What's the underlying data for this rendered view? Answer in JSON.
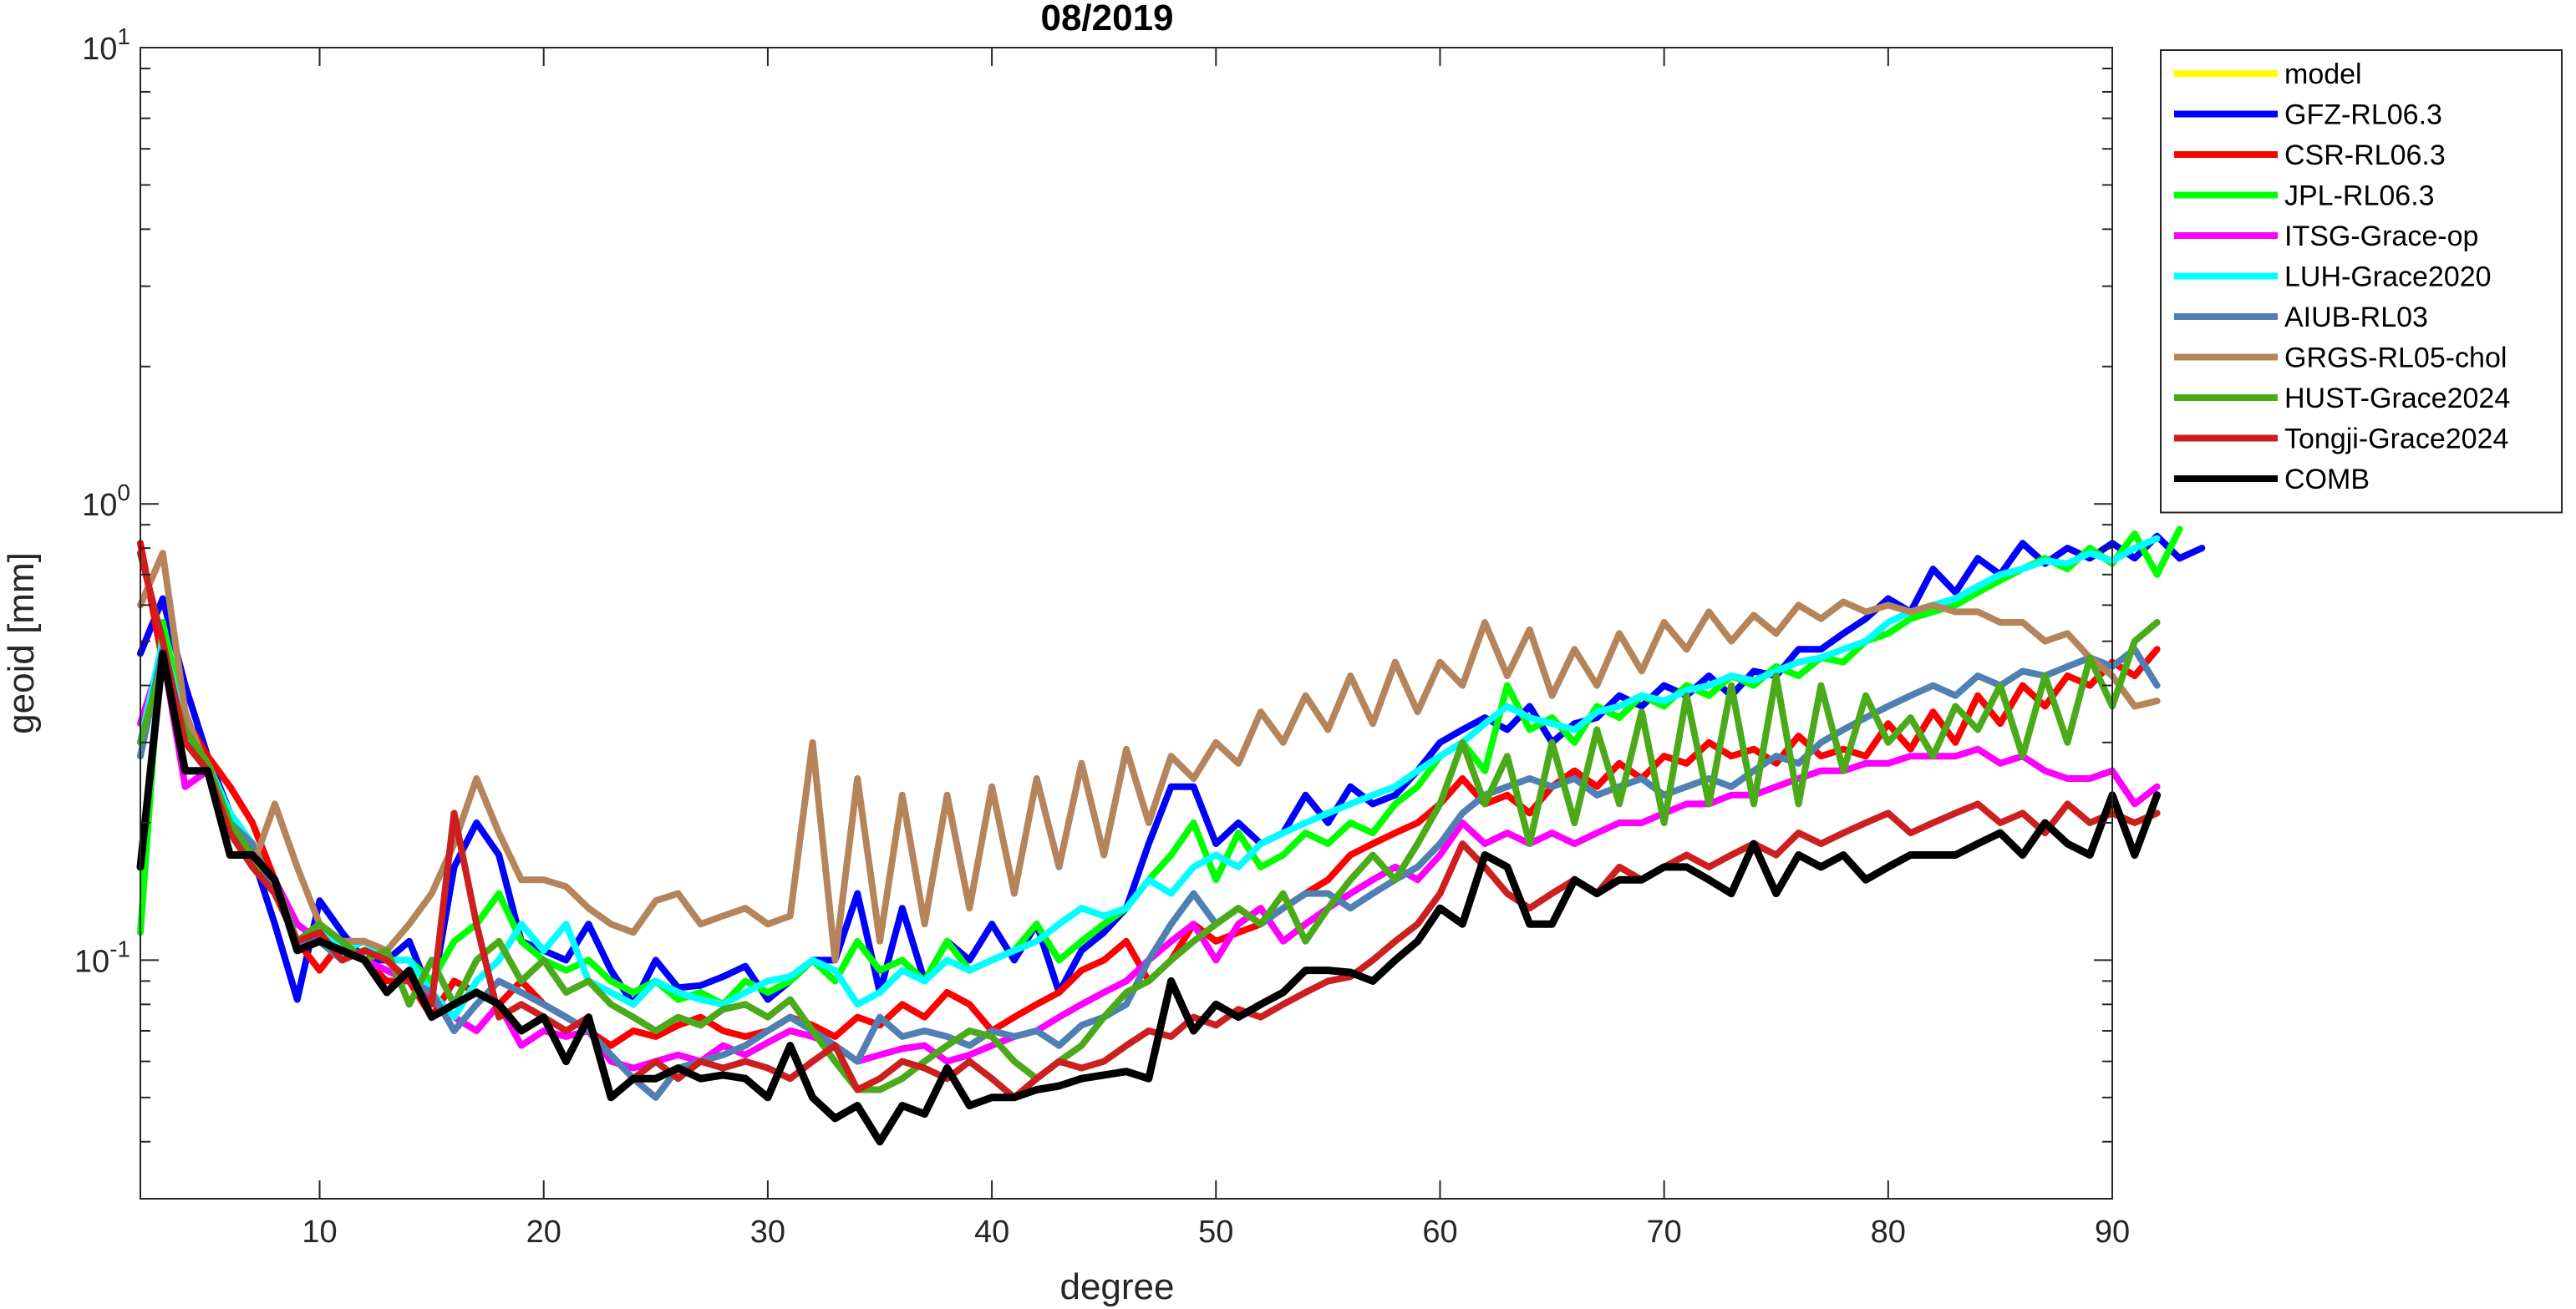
{
  "chart_data": {
    "type": "line",
    "title": "08/2019",
    "xlabel": "degree",
    "ylabel": "geoid [mm]",
    "xlim": [
      2,
      90
    ],
    "ylim": [
      0.03,
      10
    ],
    "y_scale": "log",
    "x_ticks": [
      10,
      20,
      30,
      40,
      50,
      60,
      70,
      80,
      90
    ],
    "x_tick_labels": [
      "10",
      "20",
      "30",
      "40",
      "50",
      "60",
      "70",
      "80",
      "90"
    ],
    "y_ticks": [
      {
        "value": 0.1,
        "base": "10",
        "exp": "-1"
      },
      {
        "value": 1,
        "base": "10",
        "exp": "0"
      },
      {
        "value": 10,
        "base": "10",
        "exp": "1"
      }
    ],
    "grid": false,
    "legend_position": "outside-top-right",
    "x_start": 2,
    "series": [
      {
        "name": "model",
        "color": "#ffff00",
        "values": []
      },
      {
        "name": "GFZ-RL06.3",
        "color": "#0000ff",
        "values": [
          0.47,
          0.62,
          0.4,
          0.28,
          0.21,
          0.17,
          0.12,
          0.082,
          0.135,
          0.115,
          0.1,
          0.1,
          0.11,
          0.083,
          0.16,
          0.2,
          0.17,
          0.11,
          0.105,
          0.1,
          0.12,
          0.095,
          0.08,
          0.1,
          0.087,
          0.088,
          0.092,
          0.097,
          0.082,
          0.09,
          0.1,
          0.1,
          0.14,
          0.085,
          0.13,
          0.09,
          0.11,
          0.1,
          0.12,
          0.1,
          0.12,
          0.085,
          0.105,
          0.115,
          0.13,
          0.18,
          0.24,
          0.24,
          0.18,
          0.2,
          0.18,
          0.19,
          0.23,
          0.2,
          0.24,
          0.22,
          0.23,
          0.26,
          0.3,
          0.32,
          0.34,
          0.32,
          0.36,
          0.3,
          0.33,
          0.34,
          0.38,
          0.36,
          0.4,
          0.38,
          0.42,
          0.38,
          0.43,
          0.42,
          0.48,
          0.48,
          0.52,
          0.56,
          0.62,
          0.58,
          0.72,
          0.64,
          0.76,
          0.7,
          0.82,
          0.74,
          0.8,
          0.76,
          0.82,
          0.76,
          0.85,
          0.76,
          0.8
        ]
      },
      {
        "name": "CSR-RL06.3",
        "color": "#ff0000",
        "values": [
          0.82,
          0.45,
          0.34,
          0.28,
          0.24,
          0.2,
          0.15,
          0.11,
          0.095,
          0.11,
          0.1,
          0.09,
          0.09,
          0.075,
          0.09,
          0.085,
          0.08,
          0.09,
          0.08,
          0.075,
          0.07,
          0.065,
          0.07,
          0.068,
          0.072,
          0.075,
          0.07,
          0.068,
          0.07,
          0.075,
          0.072,
          0.068,
          0.075,
          0.072,
          0.08,
          0.075,
          0.085,
          0.08,
          0.07,
          0.075,
          0.08,
          0.085,
          0.095,
          0.1,
          0.11,
          0.09,
          0.1,
          0.12,
          0.11,
          0.115,
          0.12,
          0.13,
          0.14,
          0.15,
          0.17,
          0.18,
          0.19,
          0.2,
          0.22,
          0.25,
          0.22,
          0.23,
          0.21,
          0.24,
          0.26,
          0.24,
          0.27,
          0.25,
          0.28,
          0.27,
          0.3,
          0.28,
          0.29,
          0.27,
          0.31,
          0.28,
          0.29,
          0.28,
          0.33,
          0.29,
          0.35,
          0.3,
          0.38,
          0.33,
          0.4,
          0.36,
          0.42,
          0.4,
          0.45,
          0.42,
          0.48
        ]
      },
      {
        "name": "JPL-RL06.3",
        "color": "#00ff00",
        "values": [
          0.115,
          0.55,
          0.33,
          0.26,
          0.2,
          0.17,
          0.14,
          0.11,
          0.12,
          0.105,
          0.11,
          0.1,
          0.1,
          0.09,
          0.11,
          0.12,
          0.14,
          0.11,
          0.1,
          0.095,
          0.1,
          0.09,
          0.085,
          0.09,
          0.082,
          0.085,
          0.08,
          0.09,
          0.085,
          0.09,
          0.1,
          0.09,
          0.11,
          0.095,
          0.1,
          0.09,
          0.11,
          0.095,
          0.1,
          0.105,
          0.12,
          0.1,
          0.11,
          0.12,
          0.13,
          0.15,
          0.17,
          0.2,
          0.15,
          0.19,
          0.16,
          0.17,
          0.19,
          0.18,
          0.2,
          0.19,
          0.22,
          0.24,
          0.28,
          0.3,
          0.26,
          0.4,
          0.32,
          0.34,
          0.3,
          0.36,
          0.34,
          0.38,
          0.36,
          0.4,
          0.38,
          0.42,
          0.4,
          0.44,
          0.42,
          0.46,
          0.45,
          0.5,
          0.52,
          0.56,
          0.58,
          0.6,
          0.64,
          0.68,
          0.72,
          0.76,
          0.72,
          0.8,
          0.74,
          0.86,
          0.7,
          0.88
        ]
      },
      {
        "name": "ITSG-Grace-op",
        "color": "#ff00ff",
        "values": [
          0.33,
          0.47,
          0.24,
          0.26,
          0.2,
          0.17,
          0.15,
          0.12,
          0.11,
          0.105,
          0.1,
          0.095,
          0.09,
          0.082,
          0.075,
          0.07,
          0.08,
          0.065,
          0.07,
          0.068,
          0.07,
          0.06,
          0.058,
          0.06,
          0.062,
          0.06,
          0.065,
          0.062,
          0.066,
          0.07,
          0.068,
          0.065,
          0.06,
          0.062,
          0.064,
          0.065,
          0.06,
          0.062,
          0.065,
          0.068,
          0.07,
          0.075,
          0.08,
          0.085,
          0.09,
          0.1,
          0.11,
          0.12,
          0.1,
          0.12,
          0.13,
          0.11,
          0.12,
          0.13,
          0.14,
          0.15,
          0.16,
          0.15,
          0.17,
          0.2,
          0.18,
          0.19,
          0.18,
          0.19,
          0.18,
          0.19,
          0.2,
          0.2,
          0.21,
          0.22,
          0.22,
          0.23,
          0.23,
          0.24,
          0.25,
          0.26,
          0.26,
          0.27,
          0.27,
          0.28,
          0.28,
          0.28,
          0.29,
          0.27,
          0.28,
          0.26,
          0.25,
          0.25,
          0.26,
          0.22,
          0.24
        ]
      },
      {
        "name": "LUH-Grace2020",
        "color": "#00ffff",
        "values": [
          0.3,
          0.5,
          0.32,
          0.27,
          0.21,
          0.18,
          0.14,
          0.11,
          0.12,
          0.105,
          0.11,
          0.1,
          0.1,
          0.085,
          0.075,
          0.09,
          0.1,
          0.12,
          0.105,
          0.12,
          0.09,
          0.085,
          0.08,
          0.09,
          0.085,
          0.082,
          0.08,
          0.085,
          0.09,
          0.092,
          0.1,
          0.095,
          0.08,
          0.085,
          0.095,
          0.09,
          0.1,
          0.095,
          0.1,
          0.105,
          0.11,
          0.12,
          0.13,
          0.125,
          0.13,
          0.15,
          0.14,
          0.16,
          0.17,
          0.16,
          0.18,
          0.19,
          0.2,
          0.21,
          0.22,
          0.23,
          0.24,
          0.26,
          0.28,
          0.3,
          0.33,
          0.36,
          0.34,
          0.33,
          0.32,
          0.35,
          0.36,
          0.38,
          0.37,
          0.39,
          0.4,
          0.42,
          0.41,
          0.43,
          0.45,
          0.46,
          0.48,
          0.5,
          0.55,
          0.58,
          0.6,
          0.62,
          0.66,
          0.7,
          0.72,
          0.75,
          0.74,
          0.78,
          0.75,
          0.8,
          0.84
        ]
      },
      {
        "name": "AIUB-RL03",
        "color": "#4f7fb3",
        "values": [
          0.28,
          0.48,
          0.3,
          0.26,
          0.2,
          0.18,
          0.14,
          0.11,
          0.11,
          0.1,
          0.105,
          0.1,
          0.09,
          0.085,
          0.07,
          0.08,
          0.09,
          0.085,
          0.08,
          0.075,
          0.07,
          0.062,
          0.055,
          0.05,
          0.058,
          0.06,
          0.062,
          0.065,
          0.07,
          0.075,
          0.07,
          0.065,
          0.06,
          0.075,
          0.068,
          0.07,
          0.068,
          0.065,
          0.07,
          0.068,
          0.07,
          0.065,
          0.072,
          0.075,
          0.08,
          0.1,
          0.12,
          0.14,
          0.12,
          0.13,
          0.12,
          0.13,
          0.14,
          0.14,
          0.13,
          0.14,
          0.15,
          0.16,
          0.18,
          0.21,
          0.23,
          0.24,
          0.25,
          0.24,
          0.25,
          0.23,
          0.24,
          0.25,
          0.23,
          0.24,
          0.25,
          0.24,
          0.26,
          0.28,
          0.27,
          0.3,
          0.32,
          0.34,
          0.36,
          0.38,
          0.4,
          0.38,
          0.42,
          0.4,
          0.43,
          0.42,
          0.44,
          0.46,
          0.44,
          0.48,
          0.4
        ]
      },
      {
        "name": "GRGS-RL05-chol",
        "color": "#b5845a",
        "values": [
          0.6,
          0.78,
          0.35,
          0.26,
          0.2,
          0.16,
          0.22,
          0.16,
          0.12,
          0.11,
          0.11,
          0.105,
          0.12,
          0.14,
          0.18,
          0.25,
          0.19,
          0.15,
          0.15,
          0.145,
          0.13,
          0.12,
          0.115,
          0.135,
          0.14,
          0.12,
          0.125,
          0.13,
          0.12,
          0.125,
          0.3,
          0.1,
          0.25,
          0.11,
          0.23,
          0.12,
          0.23,
          0.13,
          0.24,
          0.14,
          0.25,
          0.16,
          0.27,
          0.17,
          0.29,
          0.2,
          0.28,
          0.25,
          0.3,
          0.27,
          0.35,
          0.3,
          0.38,
          0.32,
          0.42,
          0.33,
          0.45,
          0.35,
          0.45,
          0.4,
          0.55,
          0.42,
          0.53,
          0.38,
          0.48,
          0.4,
          0.52,
          0.43,
          0.55,
          0.48,
          0.58,
          0.5,
          0.57,
          0.52,
          0.6,
          0.56,
          0.61,
          0.58,
          0.6,
          0.58,
          0.6,
          0.58,
          0.58,
          0.55,
          0.55,
          0.5,
          0.52,
          0.46,
          0.42,
          0.36,
          0.37
        ]
      },
      {
        "name": "HUST-Grace2024",
        "color": "#4aaa1a",
        "values": [
          0.3,
          0.45,
          0.32,
          0.27,
          0.2,
          0.17,
          0.15,
          0.11,
          0.12,
          0.11,
          0.1,
          0.105,
          0.08,
          0.1,
          0.08,
          0.1,
          0.11,
          0.09,
          0.1,
          0.085,
          0.09,
          0.08,
          0.075,
          0.07,
          0.075,
          0.072,
          0.078,
          0.08,
          0.075,
          0.082,
          0.07,
          0.06,
          0.052,
          0.052,
          0.055,
          0.06,
          0.065,
          0.07,
          0.068,
          0.06,
          0.055,
          0.06,
          0.065,
          0.075,
          0.085,
          0.09,
          0.1,
          0.11,
          0.12,
          0.13,
          0.12,
          0.14,
          0.11,
          0.13,
          0.15,
          0.17,
          0.15,
          0.18,
          0.22,
          0.3,
          0.22,
          0.28,
          0.18,
          0.3,
          0.2,
          0.32,
          0.22,
          0.35,
          0.2,
          0.38,
          0.22,
          0.4,
          0.22,
          0.42,
          0.22,
          0.4,
          0.26,
          0.38,
          0.3,
          0.34,
          0.28,
          0.36,
          0.32,
          0.4,
          0.28,
          0.42,
          0.3,
          0.46,
          0.36,
          0.5,
          0.55
        ]
      },
      {
        "name": "Tongji-Grace2024",
        "color": "#cc1f1f",
        "values": [
          0.78,
          0.5,
          0.3,
          0.26,
          0.19,
          0.16,
          0.14,
          0.11,
          0.115,
          0.1,
          0.105,
          0.1,
          0.09,
          0.08,
          0.21,
          0.12,
          0.075,
          0.08,
          0.075,
          0.07,
          0.075,
          0.05,
          0.055,
          0.06,
          0.055,
          0.06,
          0.058,
          0.06,
          0.058,
          0.055,
          0.06,
          0.065,
          0.052,
          0.055,
          0.06,
          0.058,
          0.055,
          0.06,
          0.055,
          0.05,
          0.055,
          0.06,
          0.058,
          0.06,
          0.065,
          0.07,
          0.068,
          0.075,
          0.072,
          0.078,
          0.075,
          0.08,
          0.085,
          0.09,
          0.092,
          0.1,
          0.11,
          0.12,
          0.14,
          0.18,
          0.16,
          0.14,
          0.13,
          0.14,
          0.15,
          0.14,
          0.16,
          0.15,
          0.16,
          0.17,
          0.16,
          0.17,
          0.18,
          0.17,
          0.19,
          0.18,
          0.19,
          0.2,
          0.21,
          0.19,
          0.2,
          0.21,
          0.22,
          0.2,
          0.21,
          0.19,
          0.22,
          0.2,
          0.21,
          0.2,
          0.21
        ]
      },
      {
        "name": "COMB",
        "color": "#000000",
        "values": [
          0.16,
          0.47,
          0.26,
          0.26,
          0.17,
          0.17,
          0.15,
          0.105,
          0.11,
          0.105,
          0.1,
          0.085,
          0.095,
          0.075,
          0.08,
          0.085,
          0.08,
          0.07,
          0.075,
          0.06,
          0.075,
          0.05,
          0.055,
          0.055,
          0.058,
          0.055,
          0.056,
          0.055,
          0.05,
          0.065,
          0.05,
          0.045,
          0.048,
          0.04,
          0.048,
          0.046,
          0.058,
          0.048,
          0.05,
          0.05,
          0.052,
          0.053,
          0.055,
          0.056,
          0.057,
          0.055,
          0.09,
          0.07,
          0.08,
          0.075,
          0.08,
          0.085,
          0.095,
          0.095,
          0.094,
          0.09,
          0.1,
          0.11,
          0.13,
          0.12,
          0.17,
          0.16,
          0.12,
          0.12,
          0.15,
          0.14,
          0.15,
          0.15,
          0.16,
          0.16,
          0.15,
          0.14,
          0.18,
          0.14,
          0.17,
          0.16,
          0.17,
          0.15,
          0.16,
          0.17,
          0.17,
          0.17,
          0.18,
          0.19,
          0.17,
          0.2,
          0.18,
          0.17,
          0.23,
          0.17,
          0.23
        ]
      }
    ]
  }
}
